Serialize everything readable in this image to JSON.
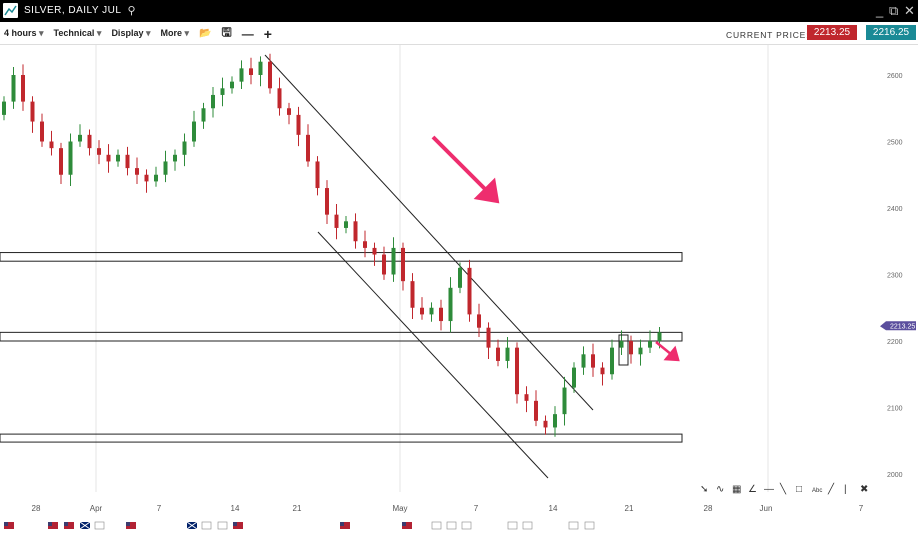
{
  "window": {
    "title": "SILVER, DAILY JUL",
    "icons": [
      "chart-logo-icon",
      "search-icon",
      "minimize-icon",
      "popout-icon",
      "close-icon"
    ]
  },
  "toolbar": {
    "timeframe": "4 hours",
    "technical": "Technical",
    "display": "Display",
    "more": "More",
    "current_price_label": "CURRENT PRICE:",
    "bid": "2213.25",
    "ask": "2216.25",
    "bid_color": "#c0272d",
    "ask_color": "#1a8a96"
  },
  "drawing_tools": [
    "pointer-icon",
    "curve-icon",
    "fibonacci-grid-icon",
    "fan-icon",
    "horizontal-line-icon",
    "trend-line-icon",
    "rectangle-icon",
    "text-icon",
    "line-icon",
    "vertical-line-icon",
    "delete-icon"
  ],
  "chart_data": {
    "type": "candlestick",
    "title": "SILVER, DAILY JUL",
    "x_ticks": [
      "28",
      "Apr",
      "7",
      "14",
      "21",
      "May",
      "7",
      "14",
      "21",
      "28",
      "Jun",
      "7"
    ],
    "y_ticks": [
      2000,
      2100,
      2200,
      2300,
      2400,
      2500,
      2600
    ],
    "ylim": [
      1960,
      2650
    ],
    "last_price": "2213.25",
    "last_price_color": "#5b4f9e",
    "up_color": "#2e8b3a",
    "down_color": "#c0272d",
    "closes": [
      2560,
      2600,
      2560,
      2530,
      2500,
      2490,
      2450,
      2500,
      2510,
      2490,
      2480,
      2470,
      2480,
      2460,
      2450,
      2440,
      2450,
      2470,
      2480,
      2500,
      2530,
      2550,
      2570,
      2580,
      2590,
      2610,
      2600,
      2620,
      2580,
      2550,
      2540,
      2510,
      2470,
      2430,
      2390,
      2370,
      2380,
      2350,
      2340,
      2330,
      2300,
      2340,
      2290,
      2250,
      2240,
      2250,
      2230,
      2280,
      2310,
      2240,
      2220,
      2190,
      2170,
      2190,
      2120,
      2110,
      2080,
      2070,
      2090,
      2130,
      2160,
      2180,
      2160,
      2150,
      2190,
      2200,
      2180,
      2190,
      2200,
      2213
    ],
    "horizontal_zones": [
      [
        2320,
        2333
      ],
      [
        2200,
        2213
      ],
      [
        2048,
        2060
      ]
    ],
    "annotations": [
      "down-arrow",
      "down-arrow"
    ],
    "event_flags": [
      "us",
      "us",
      "us",
      "uk",
      "num",
      "us",
      "uk",
      "num",
      "num",
      "us",
      "us",
      "us",
      "num",
      "num",
      "num",
      "num",
      "num",
      "num",
      "num"
    ]
  }
}
